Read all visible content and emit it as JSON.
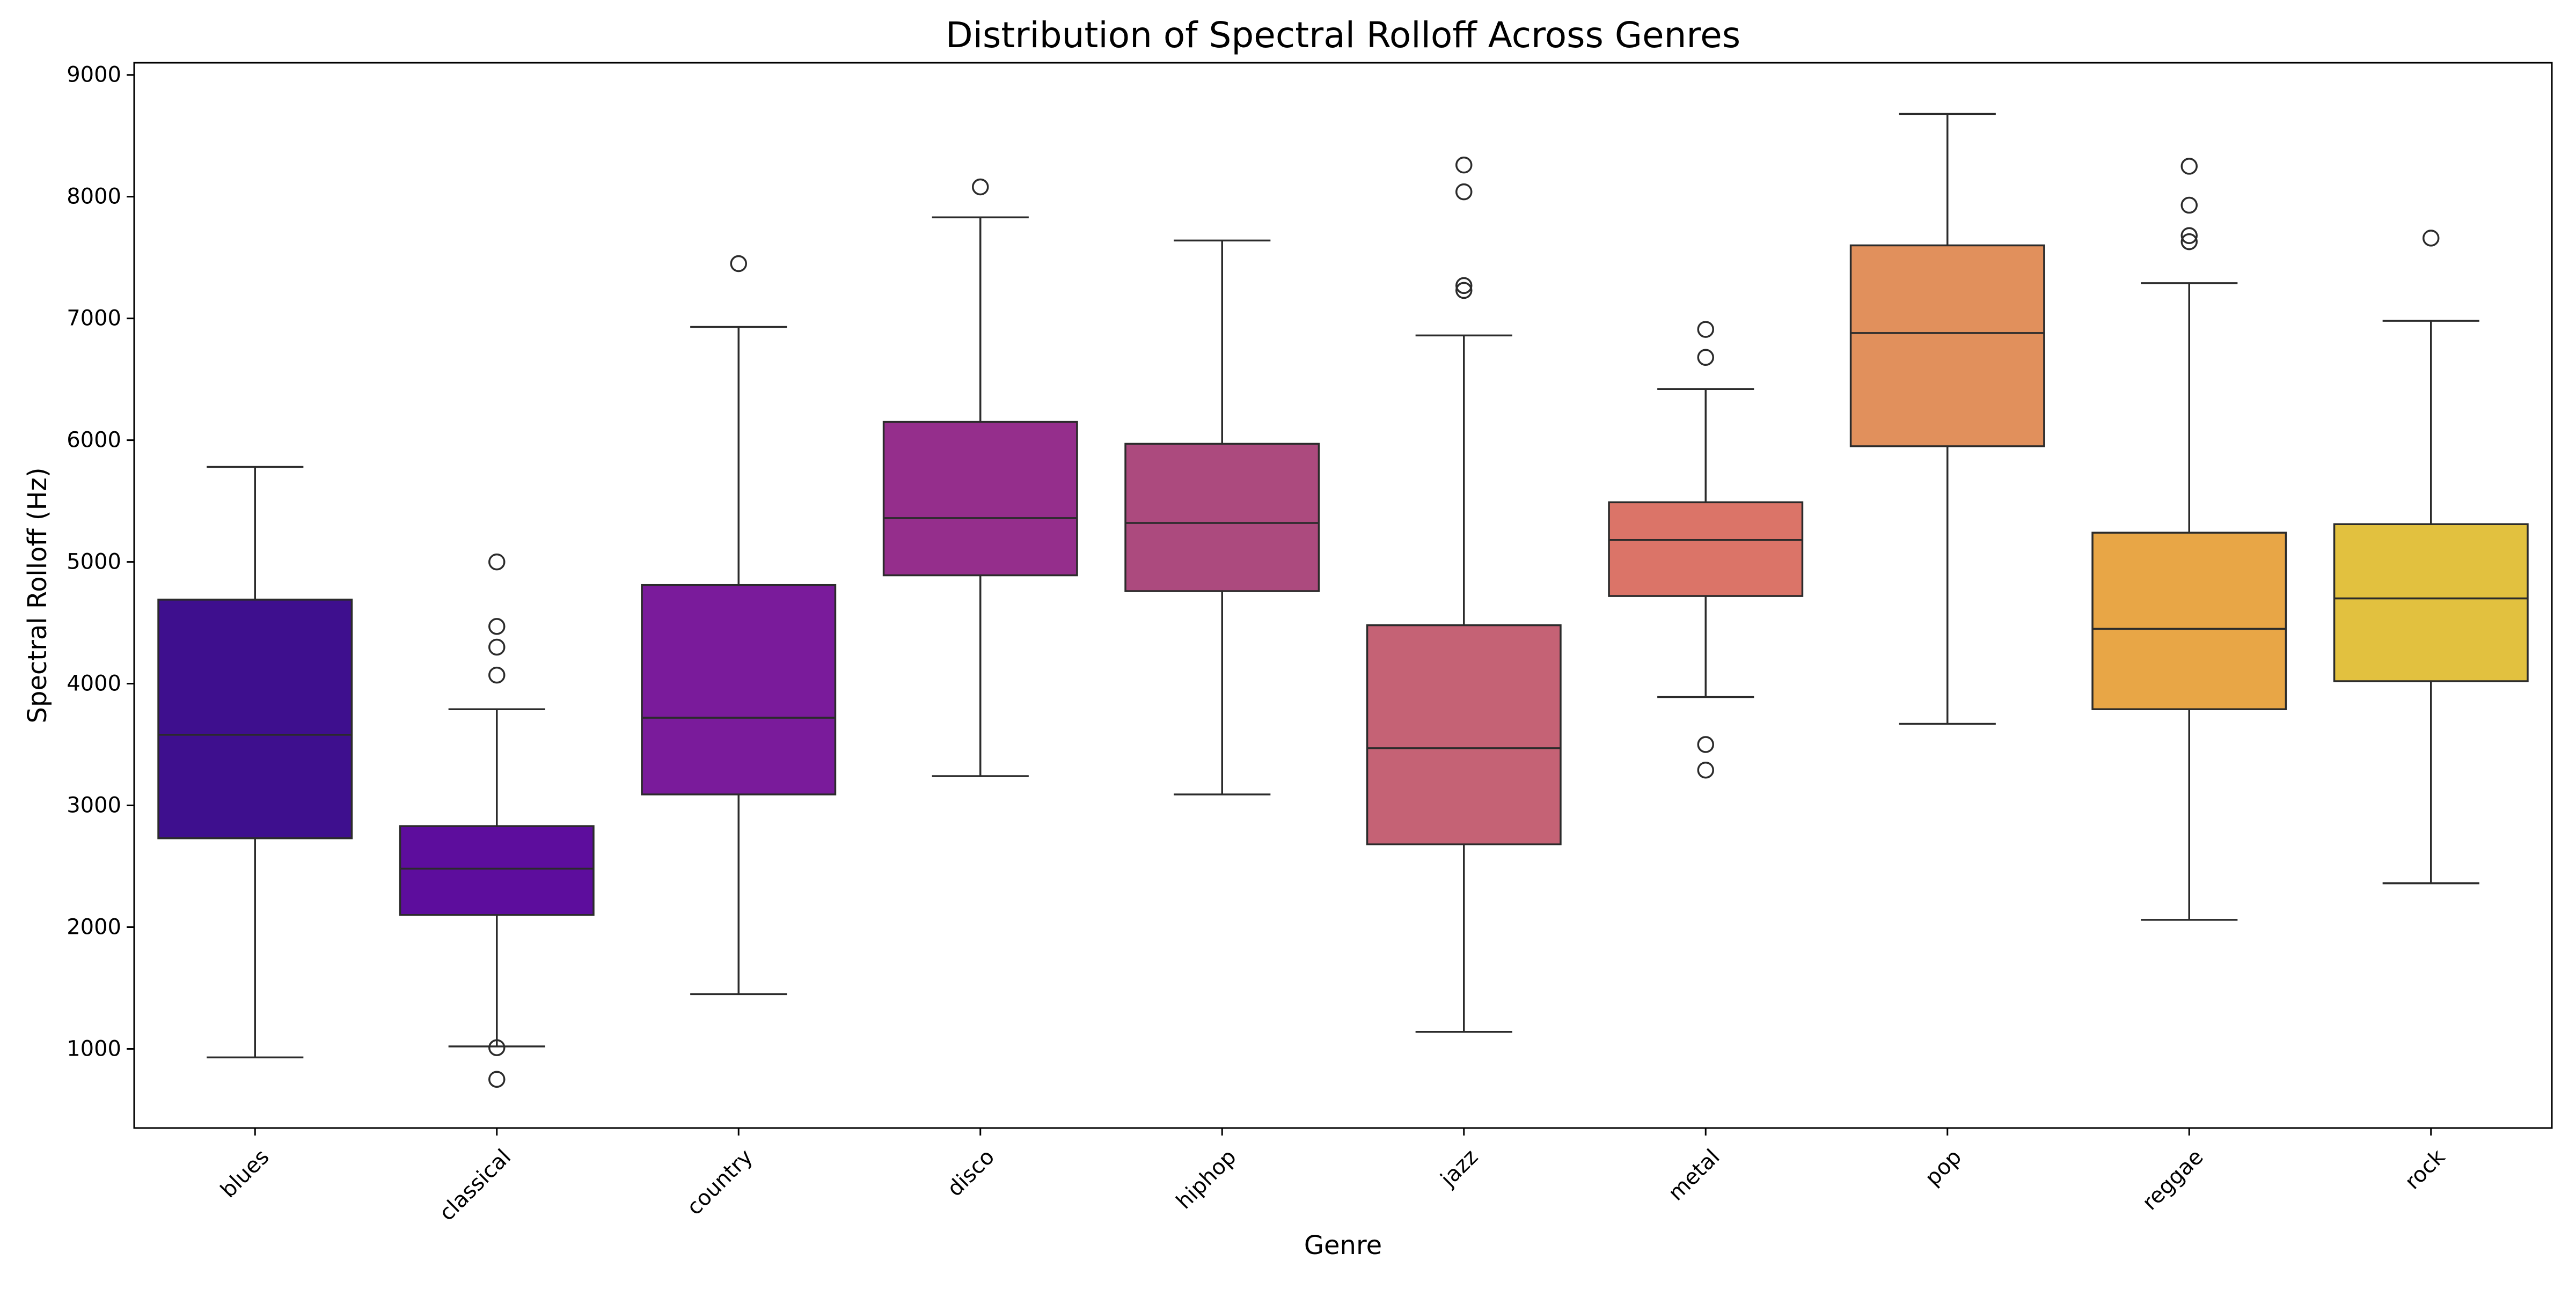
{
  "chart_data": {
    "type": "box",
    "title": "Distribution of Spectral Rolloff Across Genres",
    "xlabel": "Genre",
    "ylabel": "Spectral Rolloff (Hz)",
    "ylim": [
      350,
      9100
    ],
    "yticks": [
      1000,
      2000,
      3000,
      4000,
      5000,
      6000,
      7000,
      8000,
      9000
    ],
    "grid": false,
    "legend": "none",
    "x_tick_rotation": 45,
    "categories": [
      "blues",
      "classical",
      "country",
      "disco",
      "hiphop",
      "jazz",
      "metal",
      "pop",
      "reggae",
      "rock"
    ],
    "boxes": [
      {
        "category": "blues",
        "whisker_low": 930,
        "q1": 2730,
        "median": 3580,
        "q3": 4690,
        "whisker_high": 5780,
        "outliers": [],
        "color": "#3e0f8e"
      },
      {
        "category": "classical",
        "whisker_low": 1020,
        "q1": 2100,
        "median": 2480,
        "q3": 2830,
        "whisker_high": 3790,
        "outliers": [
          750,
          1010,
          4070,
          4300,
          4470,
          5000
        ],
        "color": "#5d0d9d"
      },
      {
        "category": "country",
        "whisker_low": 1450,
        "q1": 3090,
        "median": 3720,
        "q3": 4810,
        "whisker_high": 6930,
        "outliers": [
          7450
        ],
        "color": "#7a1b9b"
      },
      {
        "category": "disco",
        "whisker_low": 3240,
        "q1": 4890,
        "median": 5360,
        "q3": 6150,
        "whisker_high": 7830,
        "outliers": [
          8080
        ],
        "color": "#952e8c"
      },
      {
        "category": "hiphop",
        "whisker_low": 3090,
        "q1": 4760,
        "median": 5320,
        "q3": 5970,
        "whisker_high": 7640,
        "outliers": [],
        "color": "#ac4a7e"
      },
      {
        "category": "jazz",
        "whisker_low": 1140,
        "q1": 2680,
        "median": 3470,
        "q3": 4480,
        "whisker_high": 6860,
        "outliers": [
          7230,
          7270,
          8040,
          8260
        ],
        "color": "#c56275"
      },
      {
        "category": "metal",
        "whisker_low": 3890,
        "q1": 4720,
        "median": 5180,
        "q3": 5490,
        "whisker_high": 6420,
        "outliers": [
          3290,
          3500,
          6680,
          6910
        ],
        "color": "#db7468"
      },
      {
        "category": "pop",
        "whisker_low": 3670,
        "q1": 5950,
        "median": 6880,
        "q3": 7600,
        "whisker_high": 8680,
        "outliers": [],
        "color": "#e1905c"
      },
      {
        "category": "reggae",
        "whisker_low": 2060,
        "q1": 3790,
        "median": 4450,
        "q3": 5240,
        "whisker_high": 7290,
        "outliers": [
          7630,
          7680,
          7930,
          8250
        ],
        "color": "#e8a646"
      },
      {
        "category": "rock",
        "whisker_low": 2360,
        "q1": 4020,
        "median": 4700,
        "q3": 5310,
        "whisker_high": 6980,
        "outliers": [
          7660
        ],
        "color": "#e2c13f"
      }
    ]
  }
}
